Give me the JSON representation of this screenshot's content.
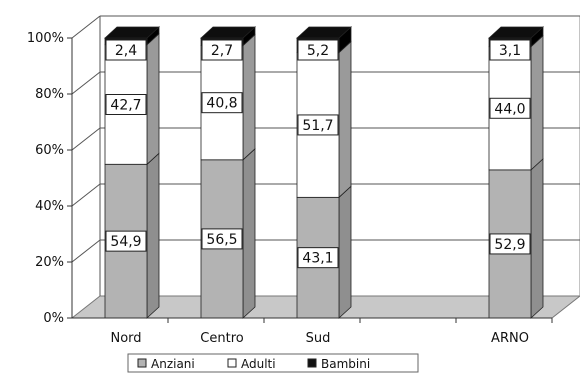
{
  "chart_data": {
    "type": "bar",
    "stacked": true,
    "percent": true,
    "three_d": true,
    "categories": [
      "Nord",
      "Centro",
      "Sud",
      "",
      "ARNO"
    ],
    "series": [
      {
        "name": "Anziani",
        "color": "#b3b3b3",
        "values": [
          54.9,
          56.5,
          43.1,
          null,
          52.9
        ],
        "labels": [
          "54,9",
          "56,5",
          "43,1",
          "",
          "52,9"
        ]
      },
      {
        "name": "Adulti",
        "color": "#ffffff",
        "values": [
          42.7,
          40.8,
          51.7,
          null,
          44.0
        ],
        "labels": [
          "42,7",
          "40,8",
          "51,7",
          "",
          "44,0"
        ]
      },
      {
        "name": "Bambini",
        "color": "#111111",
        "values": [
          2.4,
          2.7,
          5.2,
          null,
          3.1
        ],
        "labels": [
          "2,4",
          "2,7",
          "5,2",
          "",
          "3,1"
        ]
      }
    ],
    "yticks": [
      "0%",
      "20%",
      "40%",
      "60%",
      "80%",
      "100%"
    ],
    "ylim": [
      0,
      100
    ],
    "grid": true,
    "legend_position": "bottom"
  }
}
